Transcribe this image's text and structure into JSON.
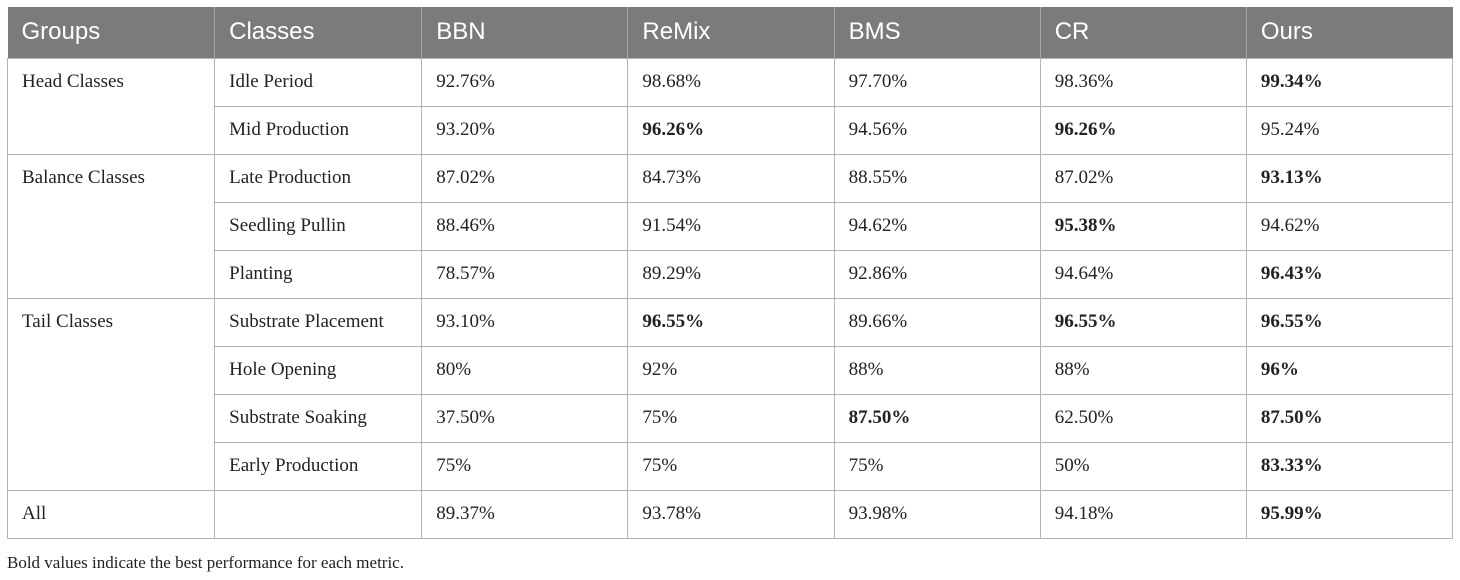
{
  "table": {
    "headers": [
      "Groups",
      "Classes",
      "BBN",
      "ReMix",
      "BMS",
      "CR",
      "Ours"
    ],
    "groups": [
      {
        "name": "Head Classes",
        "rows": [
          {
            "class": "Idle Period",
            "values": [
              "92.76%",
              "98.68%",
              "97.70%",
              "98.36%",
              "99.34%"
            ],
            "bold": [
              false,
              false,
              false,
              false,
              true
            ]
          },
          {
            "class": "Mid Production",
            "values": [
              "93.20%",
              "96.26%",
              "94.56%",
              "96.26%",
              "95.24%"
            ],
            "bold": [
              false,
              true,
              false,
              true,
              false
            ]
          }
        ]
      },
      {
        "name": "Balance Classes",
        "rows": [
          {
            "class": "Late Production",
            "values": [
              "87.02%",
              "84.73%",
              "88.55%",
              "87.02%",
              "93.13%"
            ],
            "bold": [
              false,
              false,
              false,
              false,
              true
            ]
          },
          {
            "class": "Seedling Pullin",
            "values": [
              "88.46%",
              "91.54%",
              "94.62%",
              "95.38%",
              "94.62%"
            ],
            "bold": [
              false,
              false,
              false,
              true,
              false
            ]
          },
          {
            "class": "Planting",
            "values": [
              "78.57%",
              "89.29%",
              "92.86%",
              "94.64%",
              "96.43%"
            ],
            "bold": [
              false,
              false,
              false,
              false,
              true
            ]
          }
        ]
      },
      {
        "name": "Tail Classes",
        "rows": [
          {
            "class": "Substrate Placement",
            "values": [
              "93.10%",
              "96.55%",
              "89.66%",
              "96.55%",
              "96.55%"
            ],
            "bold": [
              false,
              true,
              false,
              true,
              true
            ]
          },
          {
            "class": "Hole Opening",
            "values": [
              "80%",
              "92%",
              "88%",
              "88%",
              "96%"
            ],
            "bold": [
              false,
              false,
              false,
              false,
              true
            ]
          },
          {
            "class": "Substrate Soaking",
            "values": [
              "37.50%",
              "75%",
              "87.50%",
              "62.50%",
              "87.50%"
            ],
            "bold": [
              false,
              false,
              true,
              false,
              true
            ]
          },
          {
            "class": "Early Production",
            "values": [
              "75%",
              "75%",
              "75%",
              "50%",
              "83.33%"
            ],
            "bold": [
              false,
              false,
              false,
              false,
              true
            ]
          }
        ]
      },
      {
        "name": "All",
        "rows": [
          {
            "class": "",
            "values": [
              "89.37%",
              "93.78%",
              "93.98%",
              "94.18%",
              "95.99%"
            ],
            "bold": [
              false,
              false,
              false,
              false,
              true
            ]
          }
        ]
      }
    ]
  },
  "footnote": "Bold values indicate the best performance for each metric.",
  "colors": {
    "header_bg": "#7b7b7b",
    "header_text": "#ffffff",
    "border": "#b5b5b5"
  }
}
